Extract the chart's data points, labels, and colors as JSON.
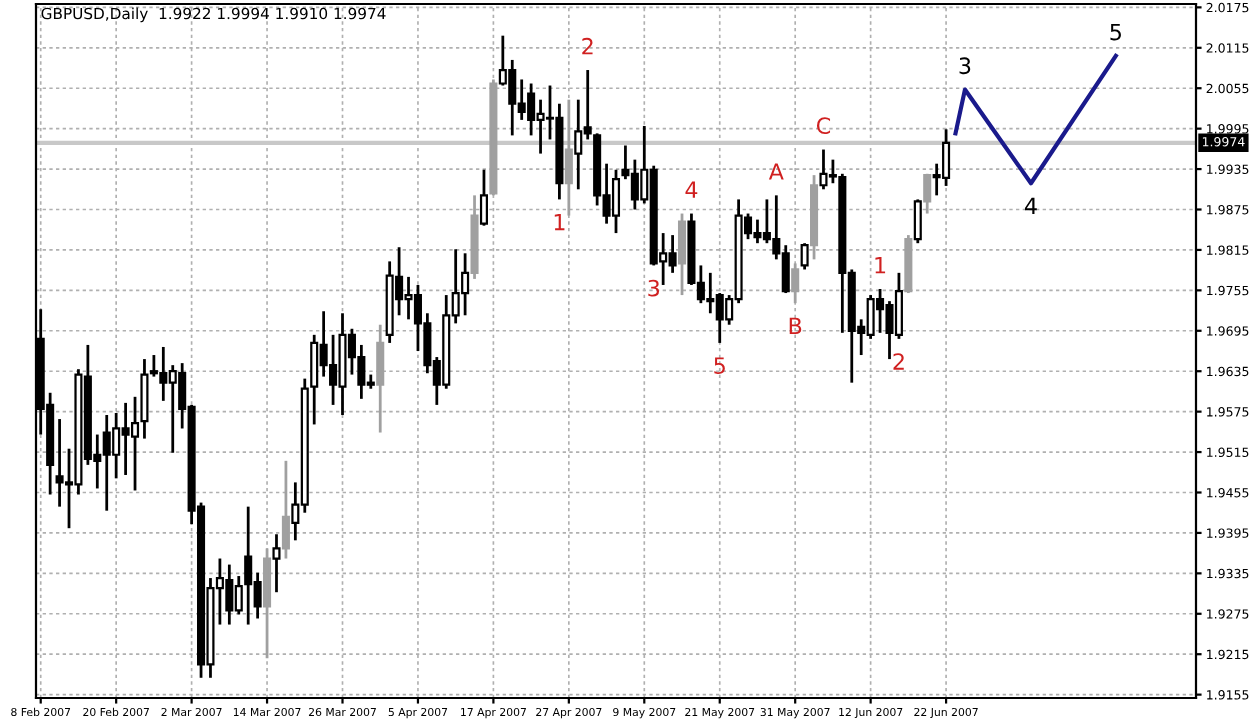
{
  "chart_data": {
    "type": "candlestick",
    "title": "GBPUSD,Daily  1.9922 1.9994 1.9910 1.9974",
    "categories": [
      "8 Feb 2007",
      null,
      null,
      null,
      null,
      null,
      null,
      null,
      "20 Feb 2007",
      null,
      null,
      null,
      null,
      null,
      null,
      null,
      "2 Mar 2007",
      null,
      null,
      null,
      null,
      null,
      null,
      null,
      "14 Mar 2007",
      null,
      null,
      null,
      null,
      null,
      null,
      null,
      "26 Mar 2007",
      null,
      null,
      null,
      null,
      null,
      null,
      null,
      "5 Apr 2007",
      null,
      null,
      null,
      null,
      null,
      null,
      null,
      "17 Apr 2007",
      null,
      null,
      null,
      null,
      null,
      null,
      null,
      "27 Apr 2007",
      null,
      null,
      null,
      null,
      null,
      null,
      null,
      "9 May 2007",
      null,
      null,
      null,
      null,
      null,
      null,
      null,
      "21 May 2007",
      null,
      null,
      null,
      null,
      null,
      null,
      null,
      "31 May 2007",
      null,
      null,
      null,
      null,
      null,
      null,
      null,
      "12 Jun 2007",
      null,
      null,
      null,
      null,
      null,
      null,
      null,
      "22 Jun 2007",
      null,
      null,
      null,
      null,
      null,
      null,
      null,
      null,
      null,
      null,
      null,
      null,
      null,
      null,
      null,
      null,
      null,
      null,
      null,
      null,
      null,
      null,
      null,
      null,
      null,
      null
    ],
    "value_labels": [
      null,
      null,
      null,
      null,
      null,
      null,
      null,
      null,
      null,
      null,
      null,
      null,
      null,
      null,
      null,
      null,
      null,
      null,
      null,
      null,
      null,
      null,
      null,
      null,
      null,
      null,
      null,
      null,
      null,
      null,
      null,
      null,
      null,
      null,
      null,
      null,
      null,
      null,
      null,
      null,
      null,
      null,
      null,
      null,
      null,
      null,
      null,
      null,
      null,
      null,
      null,
      null,
      null,
      null,
      null,
      "1",
      null,
      null,
      "2",
      null,
      null,
      null,
      null,
      null,
      null,
      "3",
      null,
      null,
      null,
      "4",
      null,
      null,
      "5",
      null,
      null,
      null,
      null,
      null,
      "A",
      null,
      "B",
      null,
      null,
      "C",
      null,
      null,
      null,
      null,
      null,
      "1",
      null,
      "2",
      null,
      null,
      null,
      null,
      null,
      null,
      null,
      null,
      null,
      null,
      null,
      null,
      null,
      null,
      null,
      null,
      null,
      null,
      null,
      null,
      null,
      null,
      null,
      null,
      null,
      null,
      null,
      null,
      null,
      null,
      null
    ],
    "ohlc": [
      [
        1.9683,
        1.9727,
        1.9541,
        1.9579
      ],
      [
        1.9585,
        1.9603,
        1.9452,
        1.9496
      ],
      [
        1.9479,
        1.9564,
        1.9434,
        1.947
      ],
      [
        1.947,
        1.952,
        1.9402,
        1.9467
      ],
      [
        1.9467,
        1.9638,
        1.9452,
        1.963
      ],
      [
        1.9627,
        1.9674,
        1.9496,
        1.9505
      ],
      [
        1.9511,
        1.9541,
        1.9461,
        1.9502
      ],
      [
        1.9544,
        1.957,
        1.9428,
        1.9511
      ],
      [
        1.9511,
        1.9573,
        1.9476,
        1.955
      ],
      [
        1.955,
        1.9588,
        1.9481,
        1.9541
      ],
      [
        1.9538,
        1.9597,
        1.9458,
        1.9558
      ],
      [
        1.9561,
        1.9653,
        1.9535,
        1.963
      ],
      [
        1.9632,
        1.9659,
        1.9627,
        1.9635
      ],
      [
        1.9632,
        1.9671,
        1.9591,
        1.9618
      ],
      [
        1.9618,
        1.9644,
        1.9514,
        1.9635
      ],
      [
        1.9632,
        1.9647,
        1.955,
        1.9579
      ],
      [
        1.9582,
        1.9585,
        1.9408,
        1.9428
      ],
      [
        1.9434,
        1.944,
        1.918,
        1.92
      ],
      [
        1.92,
        1.9328,
        1.918,
        1.9313
      ],
      [
        1.9313,
        1.9357,
        1.9259,
        1.9328
      ],
      [
        1.9325,
        1.9348,
        1.9259,
        1.928
      ],
      [
        1.928,
        1.9331,
        1.9274,
        1.9316
      ],
      [
        1.936,
        1.9434,
        1.9259,
        1.9319
      ],
      [
        1.9322,
        1.9336,
        1.9268,
        1.9286
      ],
      [
        1.9286,
        1.9372,
        1.9209,
        1.9357
      ],
      [
        1.9357,
        1.9393,
        1.9307,
        1.9372
      ],
      [
        1.9372,
        1.9502,
        1.9357,
        1.9419
      ],
      [
        1.941,
        1.947,
        1.9384,
        1.9437
      ],
      [
        1.9437,
        1.9624,
        1.9425,
        1.9609
      ],
      [
        1.9612,
        1.9689,
        1.9556,
        1.9677
      ],
      [
        1.9674,
        1.9724,
        1.9627,
        1.9644
      ],
      [
        1.9644,
        1.9689,
        1.9585,
        1.9615
      ],
      [
        1.9612,
        1.9721,
        1.957,
        1.9689
      ],
      [
        1.9689,
        1.9698,
        1.963,
        1.9656
      ],
      [
        1.9656,
        1.9674,
        1.9594,
        1.9615
      ],
      [
        1.9618,
        1.963,
        1.9609,
        1.9615
      ],
      [
        1.9615,
        1.9704,
        1.9544,
        1.9677
      ],
      [
        1.9689,
        1.9798,
        1.9677,
        1.9777
      ],
      [
        1.9775,
        1.9819,
        1.9718,
        1.9742
      ],
      [
        1.9742,
        1.9775,
        1.9712,
        1.9748
      ],
      [
        1.9748,
        1.9763,
        1.9665,
        1.9706
      ],
      [
        1.9706,
        1.9721,
        1.9632,
        1.9644
      ],
      [
        1.965,
        1.9656,
        1.9585,
        1.9615
      ],
      [
        1.9615,
        1.9748,
        1.9609,
        1.9718
      ],
      [
        1.9718,
        1.9816,
        1.9706,
        1.9751
      ],
      [
        1.9751,
        1.981,
        1.9718,
        1.9781
      ],
      [
        1.9781,
        1.9896,
        1.9772,
        1.9866
      ],
      [
        1.9854,
        1.9934,
        1.9851,
        1.9896
      ],
      [
        1.9899,
        2.0068,
        1.9896,
        2.0062
      ],
      [
        2.0062,
        2.0133,
        2.0059,
        2.0082
      ],
      [
        2.0082,
        2.0097,
        1.9985,
        2.0032
      ],
      [
        2.0032,
        2.0068,
        2.0008,
        2.002
      ],
      [
        2.0047,
        2.0062,
        1.9985,
        2.0008
      ],
      [
        2.0008,
        2.0038,
        1.9958,
        2.0017
      ],
      [
        2.001,
        2.0059,
        1.9979,
        2.0011
      ],
      [
        2.0011,
        2.0032,
        1.989,
        1.9914
      ],
      [
        1.9914,
        2.0038,
        1.9866,
        1.9964
      ],
      [
        1.9958,
        2.0038,
        1.9905,
        1.9991
      ],
      [
        1.9997,
        2.0082,
        1.9979,
        1.9988
      ],
      [
        1.9985,
        1.9988,
        1.9881,
        1.9896
      ],
      [
        1.9896,
        1.9943,
        1.9854,
        1.9866
      ],
      [
        1.9866,
        1.9934,
        1.984,
        1.992
      ],
      [
        1.9934,
        1.997,
        1.992,
        1.9926
      ],
      [
        1.9928,
        1.9949,
        1.9875,
        1.989
      ],
      [
        1.989,
        1.9999,
        1.9884,
        1.9934
      ],
      [
        1.9934,
        1.994,
        1.9792,
        1.9795
      ],
      [
        1.9798,
        1.984,
        1.9763,
        1.981
      ],
      [
        1.981,
        1.9837,
        1.9781,
        1.9792
      ],
      [
        1.9795,
        1.9869,
        1.9748,
        1.9857
      ],
      [
        1.9857,
        1.9869,
        1.9763,
        1.9766
      ],
      [
        1.9766,
        1.9792,
        1.9736,
        1.9742
      ],
      [
        1.9742,
        1.9781,
        1.9721,
        1.9739
      ],
      [
        1.9748,
        1.9751,
        1.9677,
        1.9712
      ],
      [
        1.9712,
        1.9748,
        1.9704,
        1.9742
      ],
      [
        1.9742,
        1.989,
        1.9736,
        1.9866
      ],
      [
        1.9863,
        1.9869,
        1.9831,
        1.984
      ],
      [
        1.984,
        1.986,
        1.9825,
        1.9834
      ],
      [
        1.984,
        1.989,
        1.9825,
        1.9831
      ],
      [
        1.9831,
        1.9896,
        1.9801,
        1.981
      ],
      [
        1.981,
        1.9822,
        1.9751,
        1.9754
      ],
      [
        1.9754,
        1.9795,
        1.9736,
        1.9786
      ],
      [
        1.9792,
        1.9825,
        1.9786,
        1.9822
      ],
      [
        1.9822,
        1.9926,
        1.9801,
        1.9911
      ],
      [
        1.9911,
        1.9964,
        1.9905,
        1.9928
      ],
      [
        1.9926,
        1.9949,
        1.9914,
        1.9924
      ],
      [
        1.9923,
        1.9928,
        1.9692,
        1.9781
      ],
      [
        1.9781,
        1.9786,
        1.9618,
        1.9695
      ],
      [
        1.9701,
        1.9712,
        1.9659,
        1.9692
      ],
      [
        1.9689,
        1.9748,
        1.9683,
        1.9742
      ],
      [
        1.9742,
        1.9757,
        1.9692,
        1.9727
      ],
      [
        1.9733,
        1.9739,
        1.9653,
        1.9692
      ],
      [
        1.9689,
        1.9781,
        1.9683,
        1.9754
      ],
      [
        1.9754,
        1.9837,
        1.9751,
        1.9831
      ],
      [
        1.9831,
        1.989,
        1.9825,
        1.9887
      ],
      [
        1.9887,
        1.9928,
        1.9869,
        1.9926
      ],
      [
        1.9923,
        1.9943,
        1.9896,
        1.9926
      ],
      [
        1.9922,
        1.9994,
        1.991,
        1.9974
      ],
      null,
      null,
      null,
      null,
      null,
      null,
      null,
      null,
      null,
      null,
      null,
      null,
      null,
      null,
      null,
      null,
      null,
      null,
      null,
      null,
      null,
      null,
      null,
      null,
      null,
      null
    ],
    "colors": [
      "#000000",
      "#000000",
      "#000000",
      "#000000",
      "#ffffff",
      "#000000",
      "#000000",
      "#000000",
      "#ffffff",
      "#000000",
      "#ffffff",
      "#ffffff",
      "#ffffff",
      "#000000",
      "#ffffff",
      "#000000",
      "#000000",
      "#000000",
      "#ffffff",
      "#ffffff",
      "#000000",
      "#ffffff",
      "#000000",
      "#000000",
      "#a0a0a0",
      "#ffffff",
      "#a0a0a0",
      "#ffffff",
      "#ffffff",
      "#ffffff",
      "#000000",
      "#000000",
      "#ffffff",
      "#000000",
      "#000000",
      "#000000",
      "#a0a0a0",
      "#ffffff",
      "#000000",
      "#ffffff",
      "#000000",
      "#000000",
      "#000000",
      "#ffffff",
      "#ffffff",
      "#ffffff",
      "#a0a0a0",
      "#ffffff",
      "#a0a0a0",
      "#ffffff",
      "#000000",
      "#000000",
      "#000000",
      "#ffffff",
      "#ffffff",
      "#000000",
      "#a0a0a0",
      "#ffffff",
      "#000000",
      "#000000",
      "#000000",
      "#ffffff",
      "#000000",
      "#000000",
      "#ffffff",
      "#000000",
      "#ffffff",
      "#000000",
      "#a0a0a0",
      "#000000",
      "#000000",
      "#000000",
      "#000000",
      "#ffffff",
      "#ffffff",
      "#000000",
      "#000000",
      "#000000",
      "#000000",
      "#000000",
      "#a0a0a0",
      "#ffffff",
      "#a0a0a0",
      "#ffffff",
      "#000000",
      "#000000",
      "#000000",
      "#000000",
      "#ffffff",
      "#000000",
      "#000000",
      "#ffffff",
      "#a0a0a0",
      "#ffffff",
      "#a0a0a0",
      "#ffffff",
      "#ffffff",
      null,
      null,
      null,
      null,
      null,
      null,
      null,
      null,
      null,
      null,
      null,
      null,
      null,
      null,
      null,
      null,
      null,
      null,
      null,
      null,
      null,
      null,
      null,
      null,
      null,
      null
    ],
    "series": [
      {
        "type": "line",
        "color": "#1a1a8c",
        "values": [
          null,
          null,
          null,
          null,
          null,
          null,
          null,
          null,
          null,
          null,
          null,
          null,
          null,
          null,
          null,
          null,
          null,
          null,
          null,
          null,
          null,
          null,
          null,
          null,
          null,
          null,
          null,
          null,
          null,
          null,
          null,
          null,
          null,
          null,
          null,
          null,
          null,
          null,
          null,
          null,
          null,
          null,
          null,
          null,
          null,
          null,
          null,
          null,
          null,
          null,
          null,
          null,
          null,
          null,
          null,
          null,
          null,
          null,
          null,
          null,
          null,
          null,
          null,
          null,
          null,
          null,
          null,
          null,
          null,
          null,
          null,
          null,
          null,
          null,
          null,
          null,
          null,
          null,
          null,
          null,
          null,
          null,
          null,
          null,
          null,
          null,
          null,
          null,
          null,
          null,
          null,
          null,
          null,
          null,
          null,
          null,
          null,
          1.9988,
          2.0053,
          null,
          null,
          null,
          null,
          null,
          null,
          1.9914,
          null,
          null,
          null,
          null,
          null,
          null,
          null,
          null,
          2.0103,
          null,
          null,
          null,
          null,
          null,
          null,
          null,
          null
        ]
      }
    ],
    "annotations": [
      "3",
      "4",
      "5"
    ],
    "ylim": [
      1.915,
      2.018
    ],
    "yticks": [
      2.0175,
      2.0115,
      2.0055,
      1.9995,
      1.9935,
      1.9875,
      1.9815,
      1.9755,
      1.9695,
      1.9635,
      1.9575,
      1.9515,
      1.9455,
      1.9395,
      1.9335,
      1.9275,
      1.9215,
      1.9155
    ],
    "ref_lines": [
      {
        "axis": "y",
        "value": 1.9974,
        "label": "1.9974",
        "color": "#c8c8c8"
      }
    ],
    "grid": true
  }
}
